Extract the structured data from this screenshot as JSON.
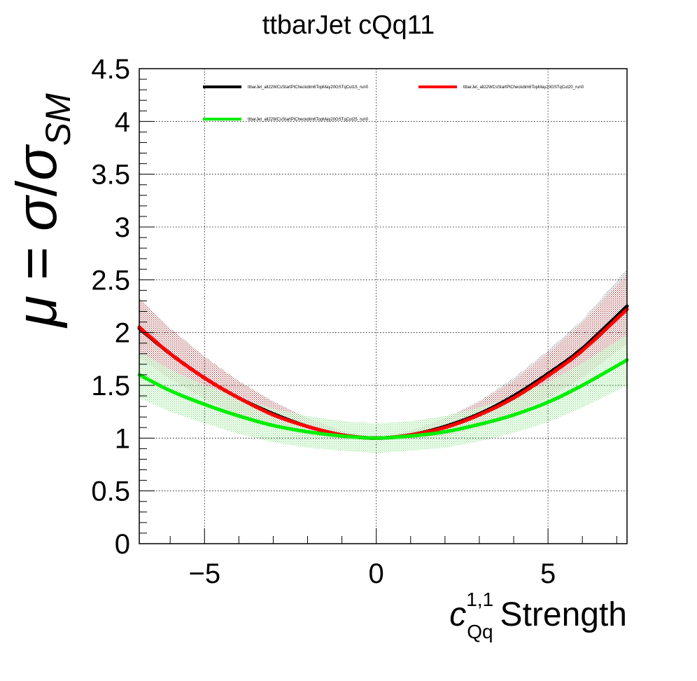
{
  "chart_data": {
    "type": "line",
    "title": "ttbarJet cQq11",
    "xlabel": {
      "symbol": "c",
      "superscript": "1,1",
      "subscript": "Qq",
      "text": "Strength"
    },
    "ylabel": {
      "mu": "μ",
      "equals": "=",
      "sigma": "σ",
      "slash": "/",
      "sigma_sm": "σ",
      "sm": "SM"
    },
    "xlim": [
      -6.9,
      7.3
    ],
    "ylim": [
      0,
      4.5
    ],
    "xticks": [
      {
        "value": -5,
        "label": "−5"
      },
      {
        "value": 0,
        "label": "0"
      },
      {
        "value": 5,
        "label": "5"
      }
    ],
    "yticks": [
      {
        "value": 0,
        "label": "0"
      },
      {
        "value": 0.5,
        "label": "0.5"
      },
      {
        "value": 1,
        "label": "1"
      },
      {
        "value": 1.5,
        "label": "1.5"
      },
      {
        "value": 2,
        "label": "2"
      },
      {
        "value": 2.5,
        "label": "2.5"
      },
      {
        "value": 3,
        "label": "3"
      },
      {
        "value": 3.5,
        "label": "3.5"
      },
      {
        "value": 4,
        "label": "4"
      },
      {
        "value": 4.5,
        "label": "4.5"
      }
    ],
    "grid": true,
    "legend_position": "top",
    "series": [
      {
        "name": "ttbarJet_all22WCsStartPtCheckdim6TopMay20GSTqCut15_run0",
        "color": "#000000",
        "band_color": "#404040",
        "x": [
          -6.9,
          -6,
          -5,
          -4,
          -3,
          -2,
          -1,
          0,
          1,
          2,
          3,
          4,
          5,
          6,
          7.3
        ],
        "y": [
          2.04,
          1.8,
          1.57,
          1.38,
          1.23,
          1.11,
          1.03,
          1.0,
          1.03,
          1.11,
          1.23,
          1.4,
          1.61,
          1.85,
          2.25
        ],
        "band": [
          0.28,
          0.24,
          0.2,
          0.16,
          0.12,
          0.08,
          0.04,
          0.0,
          0.04,
          0.08,
          0.12,
          0.17,
          0.22,
          0.27,
          0.35
        ]
      },
      {
        "name": "ttbarJet_all22WCsStartPtCheckdim6TopMay20GSTqCut20_run0",
        "color": "#ff0000",
        "band_color": "#a00000",
        "x": [
          -6.9,
          -6,
          -5,
          -4,
          -3,
          -2,
          -1,
          0,
          1,
          2,
          3,
          4,
          5,
          6,
          7.3
        ],
        "y": [
          2.05,
          1.8,
          1.57,
          1.38,
          1.22,
          1.11,
          1.03,
          1.0,
          1.03,
          1.1,
          1.22,
          1.38,
          1.59,
          1.83,
          2.22
        ],
        "band": [
          0.28,
          0.24,
          0.2,
          0.16,
          0.12,
          0.08,
          0.04,
          0.0,
          0.04,
          0.08,
          0.12,
          0.16,
          0.21,
          0.26,
          0.33
        ]
      },
      {
        "name": "ttbarJet_all22WCsStartPtCheckdim6TopMay20GSTqCut25_run0",
        "color": "#00ee00",
        "band_color": "#33cc33",
        "x": [
          -6.9,
          -6,
          -5,
          -4,
          -3,
          -2,
          -1,
          0,
          1,
          2,
          3,
          4,
          5,
          6,
          7.3
        ],
        "y": [
          1.6,
          1.45,
          1.32,
          1.21,
          1.12,
          1.06,
          1.02,
          1.0,
          1.02,
          1.06,
          1.13,
          1.22,
          1.34,
          1.5,
          1.74
        ],
        "band": [
          0.22,
          0.2,
          0.18,
          0.17,
          0.16,
          0.15,
          0.14,
          0.14,
          0.14,
          0.15,
          0.16,
          0.17,
          0.19,
          0.21,
          0.24
        ]
      }
    ]
  }
}
